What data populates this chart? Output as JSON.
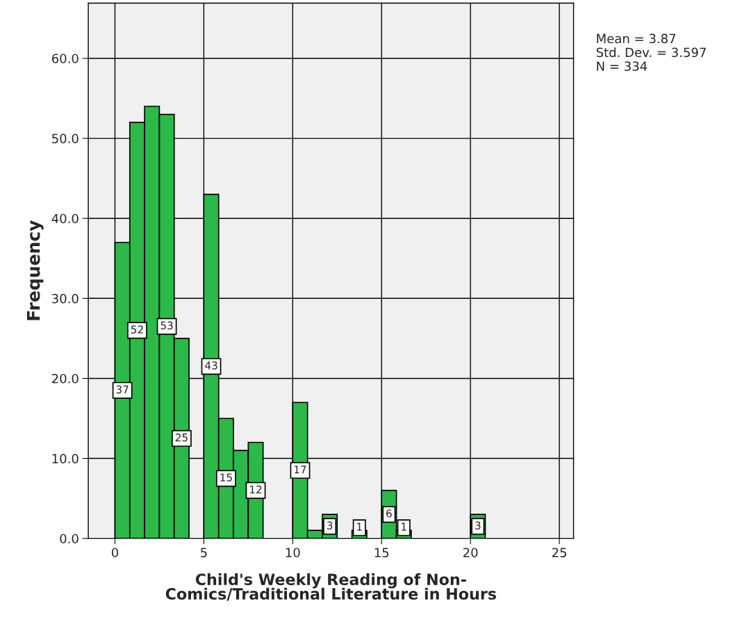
{
  "chart_data": {
    "type": "histogram",
    "xlabel": "Child's Weekly Reading of Non-\nComics/Traditional Literature in Hours",
    "ylabel": "Frequency",
    "bins": [
      0,
      0.8333,
      1.6667,
      2.5,
      3.3333,
      4.1667,
      5,
      5.8333,
      6.6667,
      7.5,
      8.3333,
      9.1667,
      10,
      10.8333,
      11.6667,
      12.5,
      13.3333,
      14.1667,
      15,
      15.8333,
      16.6667,
      17.5,
      18.3333,
      19.1667,
      20,
      20.8333,
      21.6667,
      22.5,
      23.3333,
      24.1667,
      25
    ],
    "values": [
      37,
      52,
      54,
      53,
      25,
      0,
      43,
      15,
      11,
      12,
      0,
      0,
      17,
      1,
      3,
      0,
      1,
      0,
      6,
      1,
      0,
      0,
      0,
      0,
      3,
      0,
      0,
      0,
      0,
      0
    ],
    "value_labels": [
      "37",
      "52",
      null,
      "53",
      "25",
      null,
      "43",
      "15",
      null,
      "12",
      null,
      null,
      "17",
      null,
      "3",
      null,
      "1",
      null,
      "6",
      "1",
      null,
      null,
      null,
      null,
      "3",
      null,
      null,
      null,
      null,
      null
    ],
    "color": "#2db84a",
    "xlim": [
      -1.5,
      25.8
    ],
    "xticks": [
      0,
      5,
      10,
      15,
      20,
      25
    ],
    "ylim": [
      0,
      66.9
    ],
    "yticks": [
      {
        "value": 0,
        "label": "0.0"
      },
      {
        "value": 10,
        "label": "10.0"
      },
      {
        "value": 20,
        "label": "20.0"
      },
      {
        "value": 30,
        "label": "30.0"
      },
      {
        "value": 40,
        "label": "40.0"
      },
      {
        "value": 50,
        "label": "50.0"
      },
      {
        "value": 60,
        "label": "60.0"
      }
    ],
    "grid": true,
    "annotations": [
      "Mean = 3.87",
      "Std. Dev. = 3.597",
      "N = 334"
    ]
  }
}
